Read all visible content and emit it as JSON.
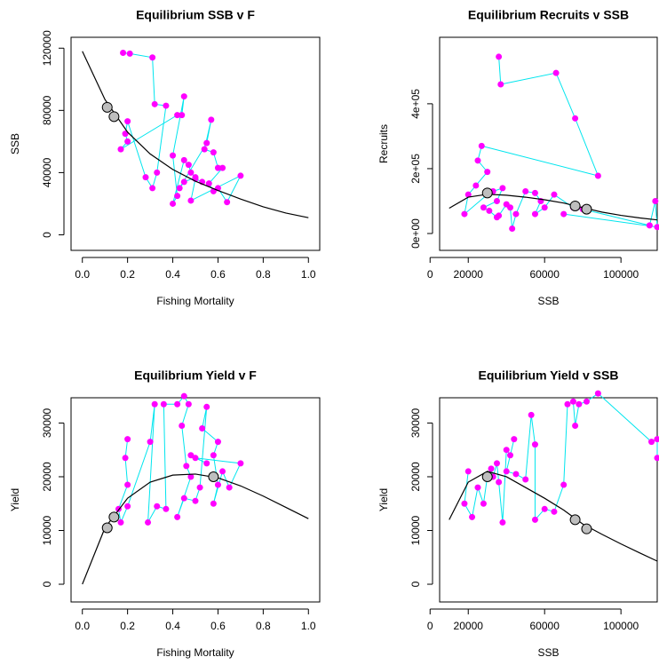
{
  "chart_data": [
    {
      "type": "scatter",
      "title": "Equilibrium SSB v F",
      "xlabel": "Fishing Mortality",
      "ylabel": "SSB",
      "xlim": [
        -0.05,
        1.05
      ],
      "ylim": [
        -10000,
        127000
      ],
      "xticks": [
        {
          "value": 0,
          "label": "0.0"
        },
        0.2,
        0.4,
        0.6,
        0.8,
        {
          "value": 1,
          "label": "1.0"
        }
      ],
      "yticks": [
        0,
        40000,
        80000,
        120000
      ],
      "curve": {
        "color": "#000000",
        "x": [
          0,
          0.1,
          0.2,
          0.3,
          0.4,
          0.5,
          0.6,
          0.7,
          0.8,
          0.9,
          1
        ],
        "values": [
          118000,
          87000,
          66000,
          52000,
          42000,
          34500,
          28500,
          23000,
          18000,
          14000,
          11000
        ]
      },
      "series": [
        {
          "color": "#ff00ff",
          "line_color": "#00e5ee",
          "x": [
            0.18,
            0.21,
            0.31,
            0.32,
            0.37,
            0.33,
            0.31,
            0.28,
            0.2,
            0.19,
            0.2,
            0.17,
            0.42,
            0.44,
            0.45,
            0.4,
            0.42,
            0.4,
            0.45,
            0.47,
            0.48,
            0.5,
            0.45,
            0.43,
            0.55,
            0.57,
            0.54,
            0.58,
            0.6,
            0.62,
            0.56,
            0.58,
            0.6,
            0.64,
            0.7,
            0.48,
            0.5,
            0.53
          ],
          "values": [
            117000,
            116500,
            114000,
            84000,
            83000,
            40000,
            30000,
            37000,
            73000,
            65000,
            60000,
            55000,
            77000,
            77000,
            89000,
            51000,
            25000,
            20000,
            48000,
            45000,
            40000,
            37000,
            34000,
            30000,
            59000,
            74000,
            55000,
            53000,
            43000,
            43000,
            33000,
            28000,
            30000,
            21000,
            38000,
            22000,
            36000,
            34000
          ]
        }
      ],
      "reference": {
        "color": "#bebebe",
        "x": [
          0.11,
          0.14
        ],
        "values": [
          82000,
          76000
        ]
      }
    },
    {
      "type": "scatter",
      "title": "Equilibrium Recruits v SSB",
      "xlabel": "SSB",
      "ylabel": "Recruits",
      "xlim": [
        5000,
        119000
      ],
      "ylim": [
        -52000,
        605000
      ],
      "xticks": [
        0,
        20000,
        60000,
        100000
      ],
      "yticks": [
        {
          "value": 0,
          "label": "0e+00"
        },
        {
          "value": 200000,
          "label": "2e+05"
        },
        {
          "value": 400000,
          "label": "4e+05"
        }
      ],
      "curve": {
        "color": "#000000",
        "x": [
          10000,
          20000,
          30000,
          40000,
          50000,
          60000,
          70000,
          80000,
          90000,
          100000,
          110000,
          119000
        ],
        "values": [
          78000,
          112000,
          121000,
          118000,
          112000,
          104000,
          94000,
          80000,
          66000,
          56000,
          48000,
          42000
        ]
      },
      "series": [
        {
          "color": "#ff00ff",
          "line_color": "#00e5ee",
          "x": [
            36000,
            37000,
            66000,
            76000,
            88000,
            27000,
            25000,
            30000,
            24000,
            20000,
            18000,
            30000,
            33000,
            38000,
            35000,
            28000,
            31000,
            35000,
            36000,
            40000,
            42000,
            43000,
            45000,
            50000,
            55000,
            58000,
            55000,
            60000,
            65000,
            75000,
            80000,
            115000,
            118000,
            119000,
            70000
          ],
          "values": [
            545000,
            460000,
            495000,
            355000,
            178000,
            270000,
            225000,
            190000,
            148000,
            120000,
            60000,
            120000,
            130000,
            140000,
            100000,
            80000,
            70000,
            50000,
            55000,
            90000,
            80000,
            15000,
            60000,
            130000,
            125000,
            100000,
            60000,
            80000,
            120000,
            80000,
            75000,
            25000,
            100000,
            20000,
            60000
          ]
        }
      ],
      "reference": {
        "color": "#bebebe",
        "x": [
          30000,
          76000,
          82000
        ],
        "values": [
          125000,
          85000,
          75000
        ]
      }
    },
    {
      "type": "scatter",
      "title": "Equilibrium Yield v F",
      "xlabel": "Fishing Mortality",
      "ylabel": "Yield",
      "xlim": [
        -0.05,
        1.05
      ],
      "ylim": [
        -3300,
        34700
      ],
      "xticks": [
        {
          "value": 0,
          "label": "0.0"
        },
        0.2,
        0.4,
        0.6,
        0.8,
        {
          "value": 1,
          "label": "1.0"
        }
      ],
      "yticks": [
        0,
        10000,
        20000,
        30000
      ],
      "curve": {
        "color": "#000000",
        "x": [
          0,
          0.1,
          0.2,
          0.3,
          0.4,
          0.5,
          0.6,
          0.7,
          0.8,
          0.9,
          1
        ],
        "values": [
          0,
          10500,
          16000,
          19000,
          20300,
          20500,
          19800,
          18300,
          16400,
          14300,
          12200
        ]
      },
      "series": [
        {
          "color": "#ff00ff",
          "line_color": "#00e5ee",
          "x": [
            0.2,
            0.19,
            0.2,
            0.16,
            0.17,
            0.2,
            0.3,
            0.32,
            0.29,
            0.33,
            0.37,
            0.36,
            0.42,
            0.45,
            0.47,
            0.44,
            0.46,
            0.48,
            0.42,
            0.45,
            0.5,
            0.52,
            0.55,
            0.53,
            0.6,
            0.58,
            0.6,
            0.58,
            0.62,
            0.65,
            0.7,
            0.5,
            0.55,
            0.48
          ],
          "values": [
            27000,
            23500,
            18500,
            14000,
            11500,
            14500,
            26500,
            33500,
            11500,
            14500,
            14000,
            33500,
            33500,
            35000,
            33500,
            29500,
            22000,
            20000,
            12500,
            16000,
            15500,
            18000,
            33000,
            29000,
            26500,
            24000,
            18500,
            15000,
            21000,
            18000,
            22500,
            23500,
            22500,
            24000
          ]
        }
      ],
      "reference": {
        "color": "#bebebe",
        "x": [
          0.11,
          0.14,
          0.58
        ],
        "values": [
          10500,
          12500,
          20000
        ]
      }
    },
    {
      "type": "scatter",
      "title": "Equilibrium Yield v SSB",
      "xlabel": "SSB",
      "ylabel": "Yield",
      "xlim": [
        5000,
        119000
      ],
      "ylim": [
        -3300,
        34700
      ],
      "xticks": [
        0,
        20000,
        60000,
        100000
      ],
      "yticks": [
        0,
        10000,
        20000,
        30000
      ],
      "curve": {
        "color": "#000000",
        "x": [
          10000,
          20000,
          30000,
          40000,
          50000,
          60000,
          70000,
          80000,
          90000,
          100000,
          110000,
          119000
        ],
        "values": [
          12000,
          19000,
          21000,
          20000,
          18000,
          16000,
          13800,
          11200,
          9300,
          7500,
          5800,
          4300
        ]
      },
      "series": [
        {
          "color": "#ff00ff",
          "line_color": "#00e5ee",
          "x": [
            20000,
            18000,
            22000,
            25000,
            28000,
            30000,
            32000,
            33000,
            35000,
            36000,
            38000,
            40000,
            42000,
            44000,
            40000,
            45000,
            50000,
            53000,
            55000,
            55000,
            60000,
            65000,
            70000,
            72000,
            75000,
            76000,
            78000,
            82000,
            88000,
            116000,
            119000,
            119000
          ],
          "values": [
            21000,
            15000,
            12500,
            18000,
            15000,
            20000,
            21500,
            20000,
            22500,
            19000,
            11500,
            25000,
            24000,
            27000,
            21000,
            20500,
            19500,
            31500,
            26000,
            12000,
            14000,
            13500,
            18500,
            33500,
            34000,
            29500,
            33500,
            34000,
            35500,
            26500,
            27000,
            23500
          ]
        }
      ],
      "reference": {
        "color": "#bebebe",
        "x": [
          30000,
          76000,
          82000
        ],
        "values": [
          20000,
          12000,
          10300
        ]
      }
    }
  ]
}
